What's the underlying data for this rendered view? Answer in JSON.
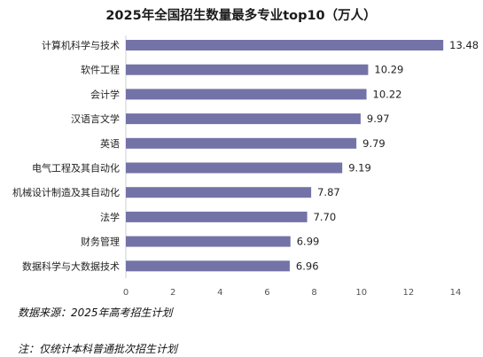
{
  "chart_data": {
    "type": "bar",
    "orientation": "horizontal",
    "title": "2025年全国招生数量最多专业top10（万人）",
    "categories": [
      "计算机科学与技术",
      "软件工程",
      "会计学",
      "汉语言文学",
      "英语",
      "电气工程及其自动化",
      "机械设计制造及其自动化",
      "法学",
      "财务管理",
      "数据科学与大数据技术"
    ],
    "values": [
      13.48,
      10.29,
      10.22,
      9.97,
      9.79,
      9.19,
      7.87,
      7.7,
      6.99,
      6.96
    ],
    "value_labels": [
      "13.48",
      "10.29",
      "10.22",
      "9.97",
      "9.79",
      "9.19",
      "7.87",
      "7.70",
      "6.99",
      "6.96"
    ],
    "xlim": [
      0,
      14
    ],
    "xticks": [
      "0",
      "2",
      "4",
      "6",
      "8",
      "10",
      "12",
      "14"
    ],
    "grid": false,
    "bar_color": "#7373a8"
  },
  "notes": {
    "source": "数据来源：2025年高考招生计划",
    "footnote": "注：仅统计本科普通批次招生计划"
  }
}
